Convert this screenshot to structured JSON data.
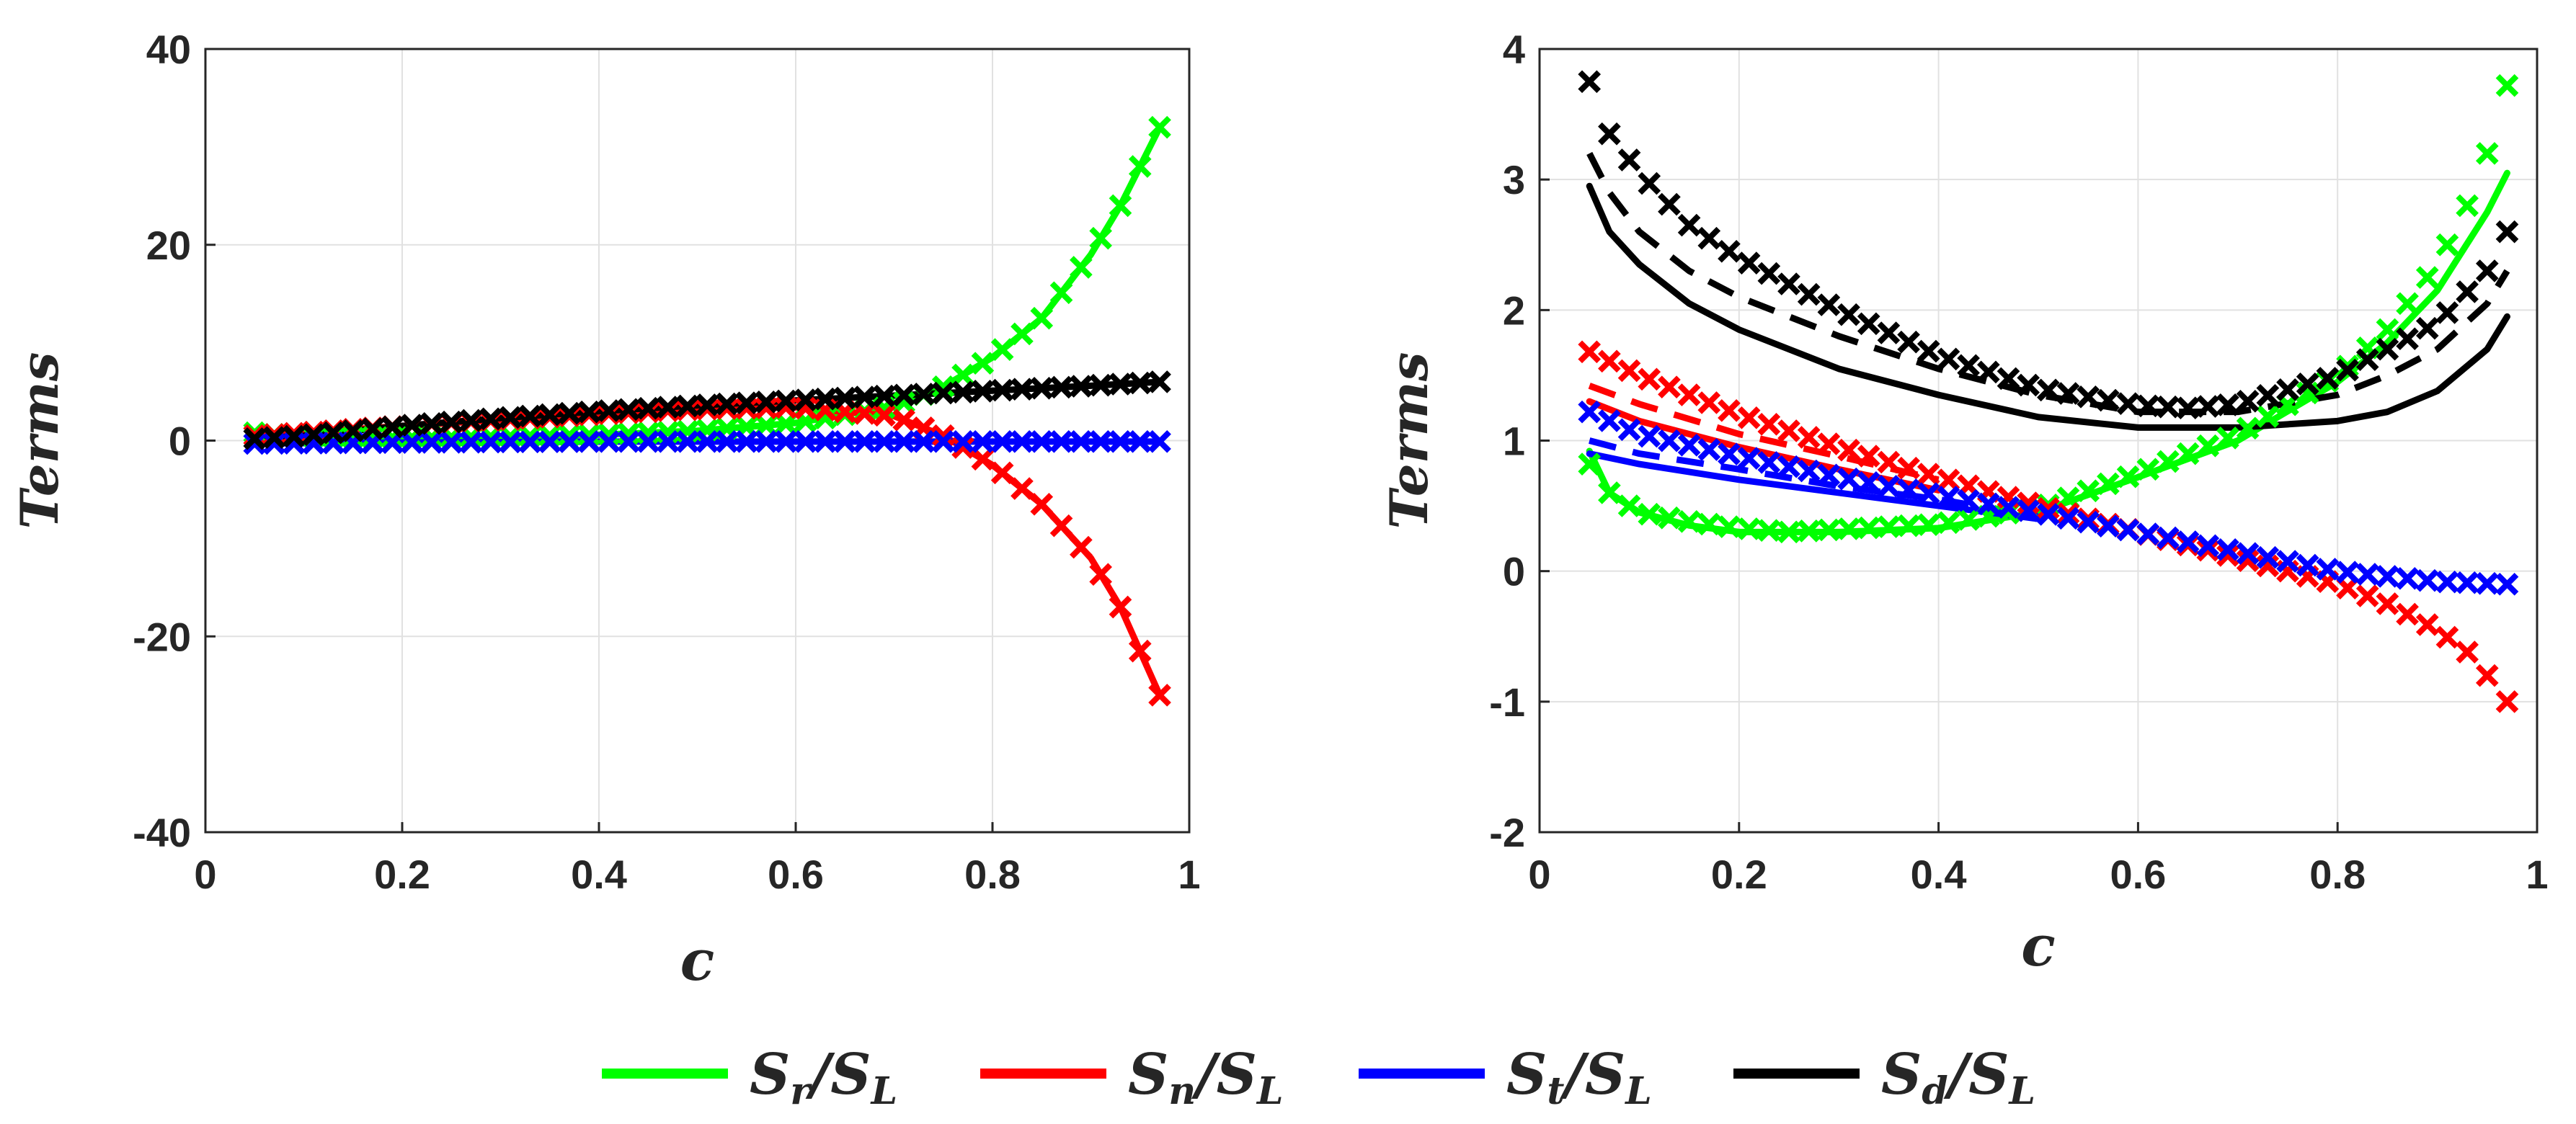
{
  "chart_data": [
    {
      "type": "line",
      "panel": "left",
      "xlabel": "c",
      "ylabel": "Terms",
      "xlim": [
        0,
        1
      ],
      "ylim": [
        -40,
        40
      ],
      "xticks": [
        0,
        0.2,
        0.4,
        0.6,
        0.8,
        1
      ],
      "xtick_labels": [
        "0",
        "0.2",
        "0.4",
        "0.6",
        "0.8",
        "1"
      ],
      "yticks": [
        -40,
        -20,
        0,
        20,
        40
      ],
      "ytick_labels": [
        "-40",
        "-20",
        "0",
        "20",
        "40"
      ],
      "grid": true,
      "series": [
        {
          "name": "S_r/S_L",
          "color": "#00ff00",
          "style": "solid+x",
          "x": [
            0.05,
            0.1,
            0.2,
            0.3,
            0.4,
            0.5,
            0.6,
            0.7,
            0.75,
            0.8,
            0.85,
            0.9,
            0.93,
            0.95,
            0.97
          ],
          "y": [
            0.8,
            0.4,
            0.3,
            0.4,
            0.6,
            1.0,
            1.8,
            3.5,
            5.5,
            8.5,
            12.5,
            19.0,
            24.0,
            28.0,
            32.0
          ]
        },
        {
          "name": "S_n/S_L",
          "color": "#ff0000",
          "style": "solid+x",
          "x": [
            0.05,
            0.1,
            0.2,
            0.3,
            0.4,
            0.5,
            0.6,
            0.7,
            0.75,
            0.8,
            0.85,
            0.9,
            0.93,
            0.95,
            0.97
          ],
          "y": [
            0.5,
            0.8,
            1.5,
            2.1,
            2.7,
            3.2,
            3.4,
            2.5,
            0.5,
            -2.5,
            -6.5,
            -12.0,
            -17.0,
            -21.5,
            -26.0
          ]
        },
        {
          "name": "S_t/S_L",
          "color": "#0000ff",
          "style": "solid+x",
          "x": [
            0.05,
            0.2,
            0.4,
            0.6,
            0.8,
            0.97
          ],
          "y": [
            -0.3,
            -0.2,
            -0.1,
            -0.1,
            -0.1,
            -0.1
          ]
        },
        {
          "name": "S_d/S_L",
          "color": "#000000",
          "style": "solid+x",
          "x": [
            0.05,
            0.1,
            0.2,
            0.3,
            0.4,
            0.5,
            0.6,
            0.7,
            0.8,
            0.9,
            0.97
          ],
          "y": [
            0.2,
            0.5,
            1.5,
            2.3,
            3.0,
            3.6,
            4.1,
            4.6,
            5.1,
            5.6,
            6.0
          ]
        }
      ]
    },
    {
      "type": "line",
      "panel": "right",
      "xlabel": "c",
      "ylabel": "Terms",
      "xlim": [
        0,
        1
      ],
      "ylim": [
        -2,
        4
      ],
      "xticks": [
        0,
        0.2,
        0.4,
        0.6,
        0.8,
        1
      ],
      "xtick_labels": [
        "0",
        "0.2",
        "0.4",
        "0.6",
        "0.8",
        "1"
      ],
      "yticks": [
        -2,
        -1,
        0,
        1,
        2,
        3,
        4
      ],
      "ytick_labels": [
        "-2",
        "-1",
        "0",
        "1",
        "2",
        "3",
        "4"
      ],
      "grid": true,
      "series": [
        {
          "name": "S_r/S_L",
          "color": "#00ff00",
          "style": "markers",
          "x": [
            0.05,
            0.07,
            0.1,
            0.15,
            0.2,
            0.25,
            0.3,
            0.4,
            0.5,
            0.6,
            0.7,
            0.8,
            0.85,
            0.9,
            0.93,
            0.95,
            0.97
          ],
          "y": [
            0.82,
            0.6,
            0.45,
            0.38,
            0.33,
            0.3,
            0.32,
            0.36,
            0.48,
            0.75,
            1.05,
            1.5,
            1.85,
            2.35,
            2.8,
            3.2,
            3.72
          ]
        },
        {
          "name": "S_r/S_L",
          "color": "#00ff00",
          "style": "solid",
          "x": [
            0.05,
            0.07,
            0.1,
            0.15,
            0.2,
            0.3,
            0.4,
            0.5,
            0.6,
            0.7,
            0.8,
            0.85,
            0.9,
            0.95,
            0.97
          ],
          "y": [
            0.92,
            0.6,
            0.45,
            0.35,
            0.3,
            0.3,
            0.33,
            0.45,
            0.72,
            1.0,
            1.45,
            1.75,
            2.15,
            2.75,
            3.05
          ]
        },
        {
          "name": "S_n/S_L",
          "color": "#ff0000",
          "style": "markers",
          "x": [
            0.05,
            0.1,
            0.2,
            0.3,
            0.4,
            0.5,
            0.6,
            0.7,
            0.8,
            0.85,
            0.9,
            0.93,
            0.95,
            0.97
          ],
          "y": [
            1.68,
            1.5,
            1.2,
            0.95,
            0.72,
            0.5,
            0.3,
            0.1,
            -0.1,
            -0.25,
            -0.45,
            -0.62,
            -0.8,
            -1.0
          ]
        },
        {
          "name": "S_n/S_L",
          "color": "#ff0000",
          "style": "dashed",
          "x": [
            0.05,
            0.1,
            0.2,
            0.3,
            0.4
          ],
          "y": [
            1.42,
            1.28,
            1.05,
            0.88,
            0.7
          ]
        },
        {
          "name": "S_n/S_L",
          "color": "#ff0000",
          "style": "solid",
          "x": [
            0.05,
            0.1,
            0.2,
            0.3,
            0.4
          ],
          "y": [
            1.3,
            1.15,
            0.95,
            0.78,
            0.62
          ]
        },
        {
          "name": "S_t/S_L",
          "color": "#0000ff",
          "style": "markers",
          "x": [
            0.05,
            0.1,
            0.2,
            0.3,
            0.4,
            0.5,
            0.6,
            0.7,
            0.8,
            0.9,
            0.97
          ],
          "y": [
            1.22,
            1.05,
            0.88,
            0.72,
            0.58,
            0.45,
            0.3,
            0.15,
            0.0,
            -0.08,
            -0.1
          ]
        },
        {
          "name": "S_t/S_L",
          "color": "#0000ff",
          "style": "dashed",
          "x": [
            0.05,
            0.1,
            0.2,
            0.3,
            0.4,
            0.5
          ],
          "y": [
            1.0,
            0.9,
            0.78,
            0.65,
            0.55,
            0.42
          ]
        },
        {
          "name": "S_t/S_L",
          "color": "#0000ff",
          "style": "solid",
          "x": [
            0.05,
            0.1,
            0.2,
            0.3,
            0.4,
            0.5
          ],
          "y": [
            0.9,
            0.82,
            0.7,
            0.6,
            0.5,
            0.4
          ]
        },
        {
          "name": "S_d/S_L",
          "color": "#000000",
          "style": "markers",
          "x": [
            0.05,
            0.07,
            0.1,
            0.15,
            0.2,
            0.3,
            0.4,
            0.5,
            0.6,
            0.65,
            0.7,
            0.8,
            0.85,
            0.9,
            0.95,
            0.97
          ],
          "y": [
            3.75,
            3.35,
            3.05,
            2.65,
            2.4,
            2.0,
            1.65,
            1.4,
            1.27,
            1.25,
            1.28,
            1.5,
            1.7,
            1.9,
            2.3,
            2.6
          ]
        },
        {
          "name": "S_d/S_L",
          "color": "#000000",
          "style": "dashed",
          "x": [
            0.05,
            0.07,
            0.1,
            0.15,
            0.2,
            0.3,
            0.4,
            0.5,
            0.6,
            0.7,
            0.8,
            0.85,
            0.9,
            0.95,
            0.97
          ],
          "y": [
            3.2,
            2.9,
            2.6,
            2.3,
            2.1,
            1.8,
            1.55,
            1.35,
            1.22,
            1.22,
            1.35,
            1.5,
            1.7,
            2.05,
            2.3
          ]
        },
        {
          "name": "S_d/S_L",
          "color": "#000000",
          "style": "solid",
          "x": [
            0.05,
            0.07,
            0.1,
            0.15,
            0.2,
            0.3,
            0.4,
            0.5,
            0.6,
            0.7,
            0.8,
            0.85,
            0.9,
            0.95,
            0.97
          ],
          "y": [
            2.95,
            2.6,
            2.35,
            2.05,
            1.85,
            1.55,
            1.35,
            1.18,
            1.1,
            1.1,
            1.15,
            1.22,
            1.38,
            1.7,
            1.95
          ]
        }
      ]
    }
  ],
  "legend": {
    "placement": "bottom-center",
    "entries": [
      {
        "label": "S_r/S_L",
        "main": "S",
        "sub": "r",
        "den": "S",
        "den_sub": "L",
        "color": "#00ff00"
      },
      {
        "label": "S_n/S_L",
        "main": "S",
        "sub": "n",
        "den": "S",
        "den_sub": "L",
        "color": "#ff0000"
      },
      {
        "label": "S_t/S_L",
        "main": "S",
        "sub": "t",
        "den": "S",
        "den_sub": "L",
        "color": "#0000ff"
      },
      {
        "label": "S_d/S_L",
        "main": "S",
        "sub": "d",
        "den": "S",
        "den_sub": "L",
        "color": "#000000"
      }
    ]
  }
}
